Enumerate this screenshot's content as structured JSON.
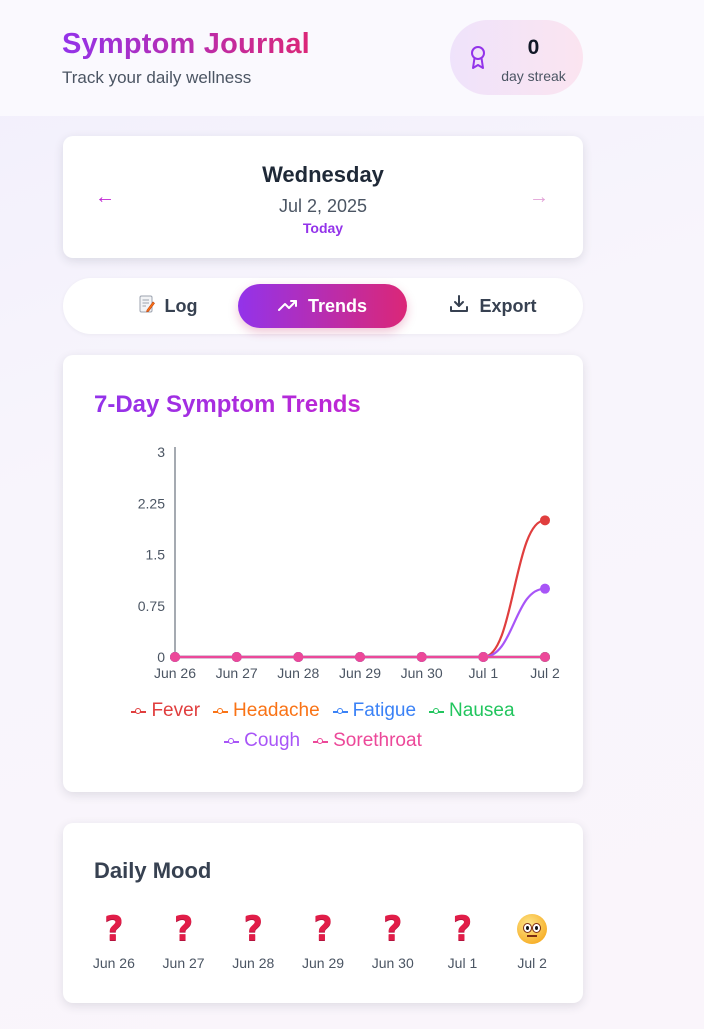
{
  "header": {
    "title": "Symptom Journal",
    "subtitle": "Track your daily wellness",
    "streak_count": "0",
    "streak_label": "day streak"
  },
  "date_nav": {
    "prev_symbol": "←",
    "next_symbol": "→",
    "weekday": "Wednesday",
    "date": "Jul 2, 2025",
    "badge": "Today"
  },
  "tabs": [
    {
      "label": "Log",
      "icon": "memo-icon",
      "active": false
    },
    {
      "label": "Trends",
      "icon": "trending-up-icon",
      "active": true
    },
    {
      "label": "Export",
      "icon": "download-icon",
      "active": false
    }
  ],
  "trends": {
    "title": "7-Day Symptom Trends"
  },
  "chart_data": {
    "type": "line",
    "title": "7-Day Symptom Trends",
    "x": [
      "Jun 26",
      "Jun 27",
      "Jun 28",
      "Jun 29",
      "Jun 30",
      "Jul 1",
      "Jul 2"
    ],
    "ylim": [
      0,
      3
    ],
    "yticks": [
      "3",
      "2.25",
      "1.5",
      "0.75",
      "0"
    ],
    "grid": false,
    "legend": "bottom",
    "series": [
      {
        "name": "Fever",
        "color": "#e03e3e",
        "values": [
          0,
          0,
          0,
          0,
          0,
          0,
          2
        ]
      },
      {
        "name": "Headache",
        "color": "#f97316",
        "values": [
          0,
          0,
          0,
          0,
          0,
          0,
          0
        ]
      },
      {
        "name": "Fatigue",
        "color": "#3b82f6",
        "values": [
          0,
          0,
          0,
          0,
          0,
          0,
          0
        ]
      },
      {
        "name": "Nausea",
        "color": "#22c55e",
        "values": [
          0,
          0,
          0,
          0,
          0,
          0,
          0
        ]
      },
      {
        "name": "Cough",
        "color": "#a855f7",
        "values": [
          0,
          0,
          0,
          0,
          0,
          0,
          1
        ]
      },
      {
        "name": "Sorethroat",
        "color": "#ec4899",
        "values": [
          0,
          0,
          0,
          0,
          0,
          0,
          0
        ]
      }
    ]
  },
  "mood": {
    "title": "Daily Mood",
    "days": [
      {
        "date": "Jun 26",
        "mood": "unknown"
      },
      {
        "date": "Jun 27",
        "mood": "unknown"
      },
      {
        "date": "Jun 28",
        "mood": "unknown"
      },
      {
        "date": "Jun 29",
        "mood": "unknown"
      },
      {
        "date": "Jun 30",
        "mood": "unknown"
      },
      {
        "date": "Jul 1",
        "mood": "unknown"
      },
      {
        "date": "Jul 2",
        "mood": "neutral"
      }
    ]
  }
}
